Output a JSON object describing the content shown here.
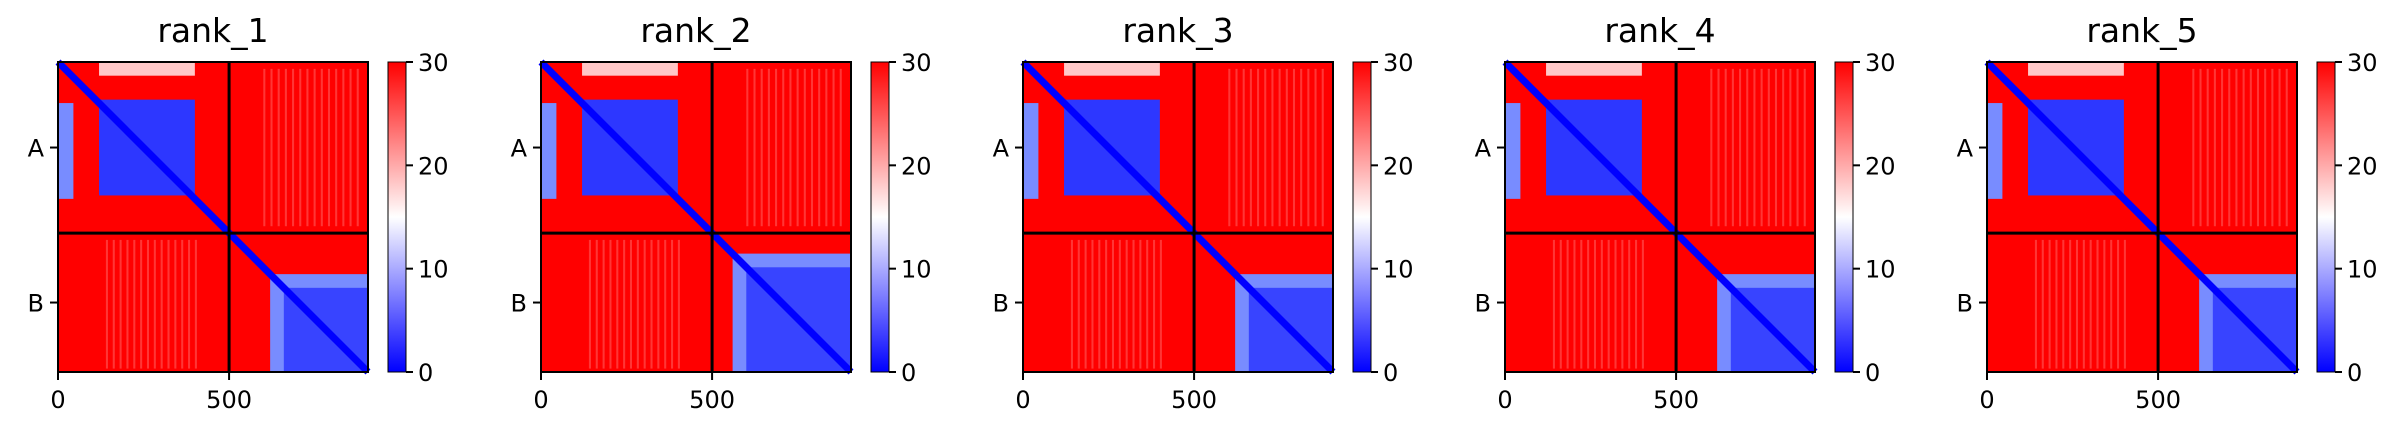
{
  "chart_data": {
    "type": "heatmap",
    "panels": [
      {
        "title": "rank_1"
      },
      {
        "title": "rank_2"
      },
      {
        "title": "rank_3"
      },
      {
        "title": "rank_4"
      },
      {
        "title": "rank_5"
      }
    ],
    "x_ticks": [
      0,
      500
    ],
    "x_tick_labels": [
      "0",
      "500"
    ],
    "y_tick_labels": [
      "A",
      "B"
    ],
    "xlim": [
      0,
      906
    ],
    "chain_boundary": 500,
    "colorbar": {
      "range": [
        0,
        30
      ],
      "ticks": [
        0,
        10,
        20,
        30
      ],
      "tick_labels": [
        "0",
        "10",
        "20",
        "30"
      ],
      "colors": {
        "low": "#0000ff",
        "mid": "#ffffff",
        "high": "#ff0000"
      }
    },
    "colors": {
      "frame": "#000000",
      "divider": "#000000"
    }
  }
}
